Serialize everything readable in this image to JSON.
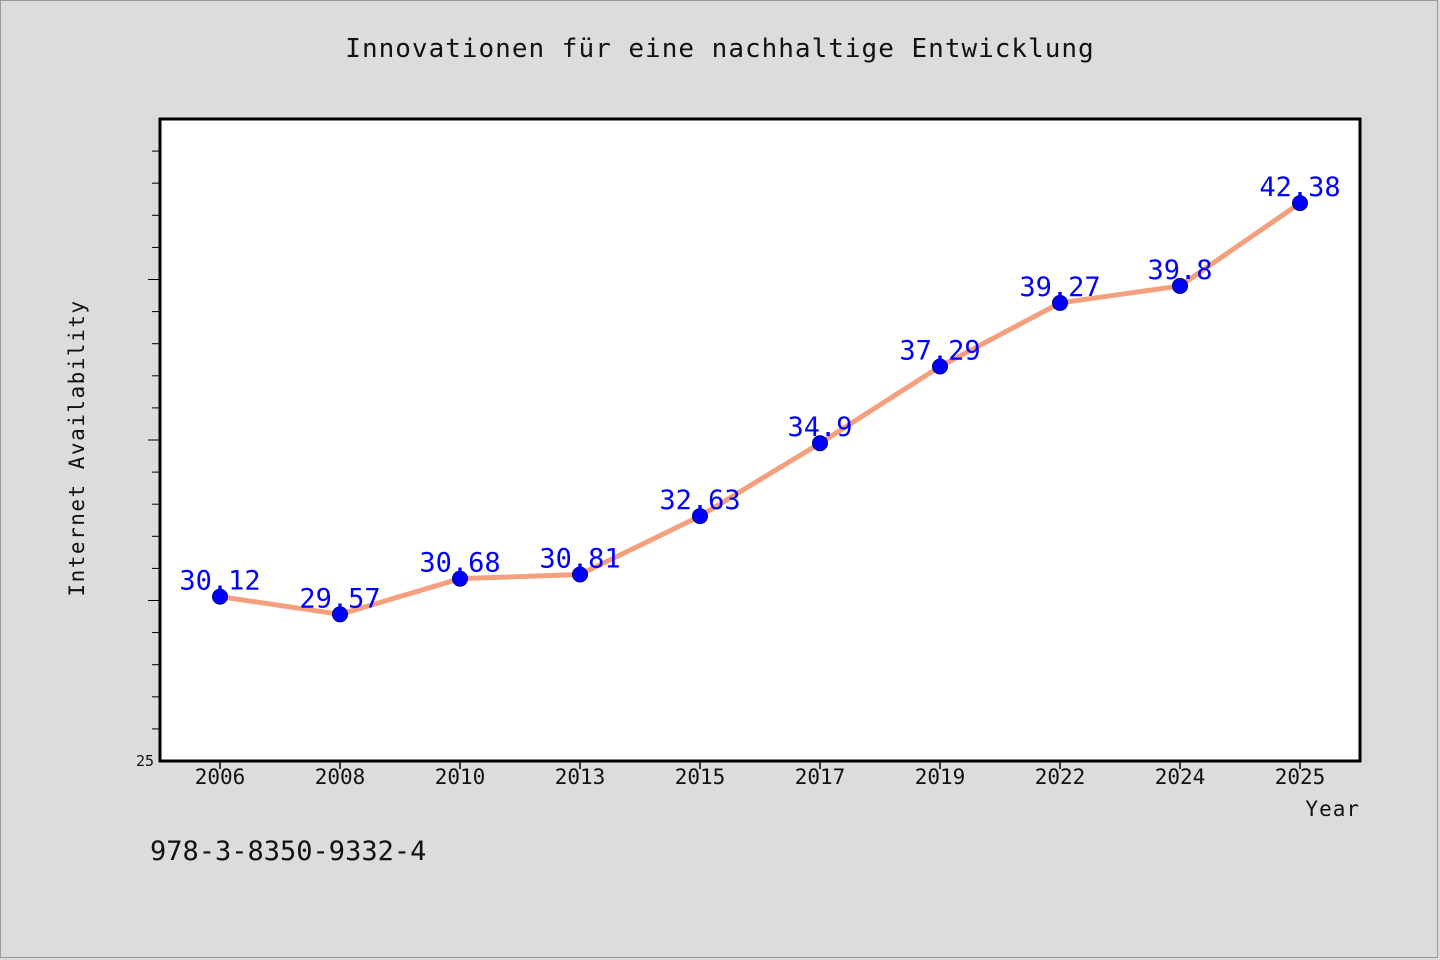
{
  "chart_data": {
    "type": "line",
    "title": "Innovationen für eine nachhaltige Entwicklung",
    "xlabel": "Year",
    "ylabel": "Internet Availability",
    "categories": [
      "2006",
      "2008",
      "2010",
      "2013",
      "2015",
      "2017",
      "2019",
      "2022",
      "2024",
      "2025"
    ],
    "series": [
      {
        "values": [
          30.12,
          29.57,
          30.68,
          30.81,
          32.63,
          34.9,
          37.29,
          39.27,
          39.8,
          42.38
        ],
        "labels": [
          "30.12",
          "29.57",
          "30.68",
          "30.81",
          "32.63",
          "34.9",
          "37.29",
          "39.27",
          "39.8",
          "42.38"
        ]
      }
    ],
    "ylim": [
      25,
      45
    ],
    "y_tick_labels": [
      "25"
    ],
    "grid": false,
    "colors": {
      "line": "#f4a07e",
      "marker": "#0000ff",
      "value_label": "#0000ff"
    }
  },
  "footer": {
    "isbn": "978-3-8350-9332-4"
  }
}
